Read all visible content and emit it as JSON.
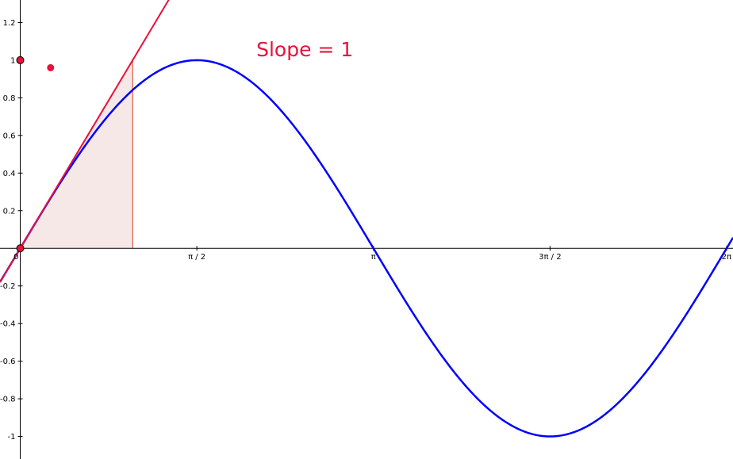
{
  "chart_data": {
    "type": "line",
    "xlim": [
      -0.18,
      6.34
    ],
    "ylim": [
      -1.12,
      1.32
    ],
    "grid": false,
    "x_ticks": [
      {
        "value": 0,
        "label": "0"
      },
      {
        "value": 1.5708,
        "label": "π / 2"
      },
      {
        "value": 3.1416,
        "label": "π"
      },
      {
        "value": 4.7124,
        "label": "3π / 2"
      },
      {
        "value": 6.2832,
        "label": "2π"
      }
    ],
    "y_ticks": [
      {
        "value": 1.2,
        "label": "1.2"
      },
      {
        "value": 1,
        "label": "1"
      },
      {
        "value": 0.8,
        "label": "0.8"
      },
      {
        "value": 0.6,
        "label": "0.6"
      },
      {
        "value": 0.4,
        "label": "0.4"
      },
      {
        "value": 0.2,
        "label": "0.2"
      },
      {
        "value": -0.2,
        "label": "-0.2"
      },
      {
        "value": -0.4,
        "label": "-0.4"
      },
      {
        "value": -0.6,
        "label": "-0.6"
      },
      {
        "value": -0.8,
        "label": "-0.8"
      },
      {
        "value": -1,
        "label": "-1"
      }
    ],
    "series": [
      {
        "function": "sin",
        "x_range": [
          -0.18,
          6.34
        ],
        "color": "#0000ff"
      },
      {
        "function": "tangent_line",
        "point": [
          0,
          0
        ],
        "slope": 1,
        "color": "#e8113a"
      }
    ],
    "shaded_triangle": {
      "vertices": [
        [
          0,
          0
        ],
        [
          1,
          0
        ],
        [
          1,
          1
        ]
      ],
      "fill": "#f5e8e6",
      "stroke": "#d9381e"
    },
    "points": [
      {
        "x": 0,
        "y": 0,
        "color": "#e8113a",
        "style": "outlined"
      },
      {
        "x": 0,
        "y": 1,
        "color": "#e8113a",
        "style": "outlined"
      },
      {
        "x": 0.27,
        "y": 0.96,
        "color": "#e8113a",
        "style": "filled"
      }
    ],
    "annotations": [
      {
        "text": "Slope = 1",
        "x": 2.1,
        "y": 1.02,
        "color": "#e8113a"
      }
    ]
  }
}
